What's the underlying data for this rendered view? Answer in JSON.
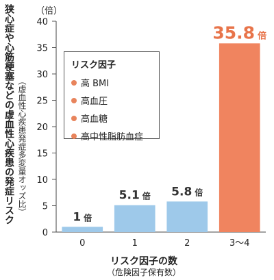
{
  "chart_data": {
    "type": "bar",
    "ylabel": "狭心症や心筋梗塞などの虚血性心疾患の発症リスク",
    "ylabel_note": "（虚血性心疾患発症多変量オッズ比）",
    "yunit": "（倍）",
    "xlabel": "リスク因子の数",
    "xlabel_note": "（危険因子保有数）",
    "ylim": [
      0,
      40
    ],
    "yticks": [
      0,
      5,
      10,
      15,
      20,
      25,
      30,
      35,
      40
    ],
    "categories": [
      "0",
      "1",
      "2",
      "3〜4"
    ],
    "values": [
      1,
      5.1,
      5.8,
      35.8
    ],
    "value_labels": [
      "1",
      "5.1",
      "5.8",
      "35.8"
    ],
    "value_suffix": "倍",
    "colors": [
      "#9ec9ea",
      "#9ec9ea",
      "#9ec9ea",
      "#f0845f"
    ],
    "label_colors": [
      "#333333",
      "#333333",
      "#333333",
      "#e8744a"
    ],
    "grid": false,
    "legend": {
      "title": "リスク因子",
      "items": [
        "高 BMI",
        "高血圧",
        "高血糖",
        "高中性脂肪血症"
      ],
      "marker_color": "#e8845c",
      "position": "top-left"
    }
  }
}
